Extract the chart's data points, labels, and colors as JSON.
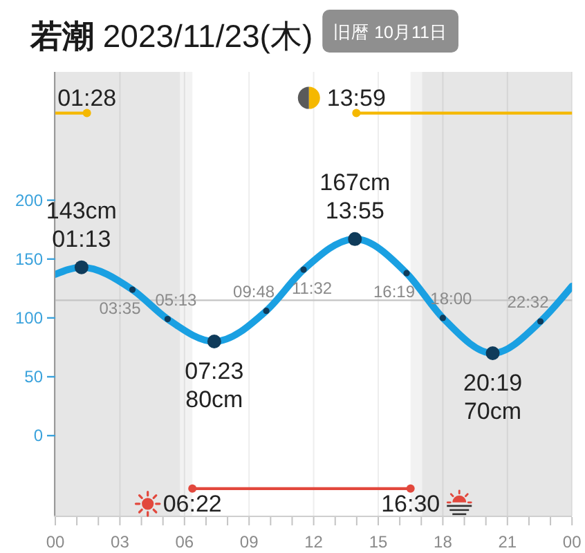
{
  "chart_data": {
    "type": "line",
    "title": "若潮 2023/11/23(木)",
    "subtitle": "旧暦 10月11日",
    "xlim": [
      0,
      24
    ],
    "xticks": [
      {
        "value": 0,
        "label": "00"
      },
      {
        "value": 1,
        "label": null
      },
      {
        "value": 2,
        "label": null
      },
      {
        "value": 3,
        "label": "03"
      },
      {
        "value": 4,
        "label": null
      },
      {
        "value": 5,
        "label": null
      },
      {
        "value": 6,
        "label": "06"
      },
      {
        "value": 7,
        "label": null
      },
      {
        "value": 8,
        "label": null
      },
      {
        "value": 9,
        "label": "09"
      },
      {
        "value": 10,
        "label": null
      },
      {
        "value": 11,
        "label": null
      },
      {
        "value": 12,
        "label": "12"
      },
      {
        "value": 13,
        "label": null
      },
      {
        "value": 14,
        "label": null
      },
      {
        "value": 15,
        "label": "15"
      },
      {
        "value": 16,
        "label": null
      },
      {
        "value": 17,
        "label": null
      },
      {
        "value": 18,
        "label": "18"
      },
      {
        "value": 19,
        "label": null
      },
      {
        "value": 20,
        "label": null
      },
      {
        "value": 21,
        "label": "21"
      },
      {
        "value": 22,
        "label": null
      },
      {
        "value": 23,
        "label": null
      },
      {
        "value": 24,
        "label": "00"
      }
    ],
    "ylim": [
      -68,
      309
    ],
    "yticks": [
      0,
      50,
      100,
      150,
      200
    ],
    "grid": "x",
    "ref_lines": [
      {
        "axis": "y",
        "value": 115,
        "color": "#c4c4c4"
      }
    ],
    "bands": [
      {
        "axis": "x",
        "from": 0,
        "to": 5.8,
        "color": "#e6e6e6"
      },
      {
        "axis": "x",
        "from": 5.8,
        "to": 6.367,
        "color": "#f2f2f2"
      },
      {
        "axis": "x",
        "from": 16.5,
        "to": 17.033,
        "color": "#f2f2f2"
      },
      {
        "axis": "x",
        "from": 17.033,
        "to": 24,
        "color": "#e6e6e6"
      }
    ],
    "series": [
      {
        "color": "#1aa0e2",
        "x": [
          0,
          1.217,
          3.583,
          5.217,
          7.383,
          9.8,
          11.533,
          13.917,
          16.317,
          18,
          20.317,
          22.533,
          24
        ],
        "values": [
          137,
          143,
          124,
          99,
          80,
          106,
          141,
          167,
          138,
          100,
          70,
          97,
          127
        ]
      },
      {
        "type": "scatter",
        "color": "#0f3b5a",
        "marker": "circle",
        "x": [
          1.217,
          7.383,
          13.917,
          20.317
        ],
        "values": [
          143,
          80,
          167,
          70
        ],
        "value_labels": [
          "143cm\n01:13",
          "07:23\n80cm",
          "167cm\n13:55",
          "20:19\n70cm"
        ]
      },
      {
        "type": "scatter",
        "color": "#0f3b5a",
        "marker": "circle",
        "x": [
          3.583,
          5.217,
          9.8,
          11.533,
          16.317,
          18,
          22.533
        ],
        "values": [
          124,
          99,
          106,
          141,
          138,
          100,
          97
        ]
      },
      {
        "color": "#f5b800",
        "marker": "circle",
        "x": [
          0,
          1.467
        ],
        "values": [
          274,
          274
        ]
      },
      {
        "color": "#f5b800",
        "marker": "circle",
        "x": [
          13.983,
          24
        ],
        "values": [
          274,
          274
        ]
      },
      {
        "color": "#e2483d",
        "marker": "circle",
        "x": [
          6.367,
          16.5
        ],
        "values": [
          -45,
          -45
        ]
      }
    ],
    "annotations": [
      {
        "text": "03:35",
        "x": 3.583,
        "y": 124
      },
      {
        "text": "05:13",
        "x": 5.217,
        "y": 99
      },
      {
        "text": "09:48",
        "x": 9.8,
        "y": 106
      },
      {
        "text": "11:32",
        "x": 11.533,
        "y": 141
      },
      {
        "text": "16:19",
        "x": 16.317,
        "y": 138
      },
      {
        "text": "18:00",
        "x": 18,
        "y": 100
      },
      {
        "text": "22:32",
        "x": 22.533,
        "y": 97
      },
      {
        "text": "01:28",
        "x": 1.467,
        "y": 274
      },
      {
        "text": "13:59",
        "x": 13.983,
        "y": 274
      },
      {
        "text": "06:22",
        "x": 6.367,
        "y": -45
      },
      {
        "text": "16:30",
        "x": 16.5,
        "y": -45
      }
    ]
  }
}
